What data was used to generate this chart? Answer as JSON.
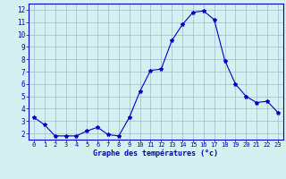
{
  "hours": [
    0,
    1,
    2,
    3,
    4,
    5,
    6,
    7,
    8,
    9,
    10,
    11,
    12,
    13,
    14,
    15,
    16,
    17,
    18,
    19,
    20,
    21,
    22,
    23
  ],
  "temps": [
    3.3,
    2.7,
    1.8,
    1.8,
    1.8,
    2.2,
    2.5,
    1.9,
    1.8,
    3.3,
    5.4,
    7.1,
    7.2,
    9.5,
    10.8,
    11.8,
    11.9,
    11.2,
    7.9,
    6.0,
    5.0,
    4.5,
    4.6,
    3.7
  ],
  "line_color": "#0000cc",
  "marker": "*",
  "marker_size": 3,
  "bg_color": "#d4f0f0",
  "grid_color": "#a0b8cc",
  "axis_label_color": "#0000cc",
  "tick_color": "#0000cc",
  "xlabel": "Graphe des températures (°c)",
  "ylim": [
    1.5,
    12.5
  ],
  "xlim": [
    -0.5,
    23.5
  ],
  "yticks": [
    2,
    3,
    4,
    5,
    6,
    7,
    8,
    9,
    10,
    11,
    12
  ],
  "xticks": [
    0,
    1,
    2,
    3,
    4,
    5,
    6,
    7,
    8,
    9,
    10,
    11,
    12,
    13,
    14,
    15,
    16,
    17,
    18,
    19,
    20,
    21,
    22,
    23
  ],
  "xticklabels": [
    "0",
    "1",
    "2",
    "3",
    "4",
    "5",
    "6",
    "7",
    "8",
    "9",
    "10",
    "11",
    "12",
    "13",
    "14",
    "15",
    "16",
    "17",
    "18",
    "19",
    "20",
    "21",
    "22",
    "23"
  ]
}
